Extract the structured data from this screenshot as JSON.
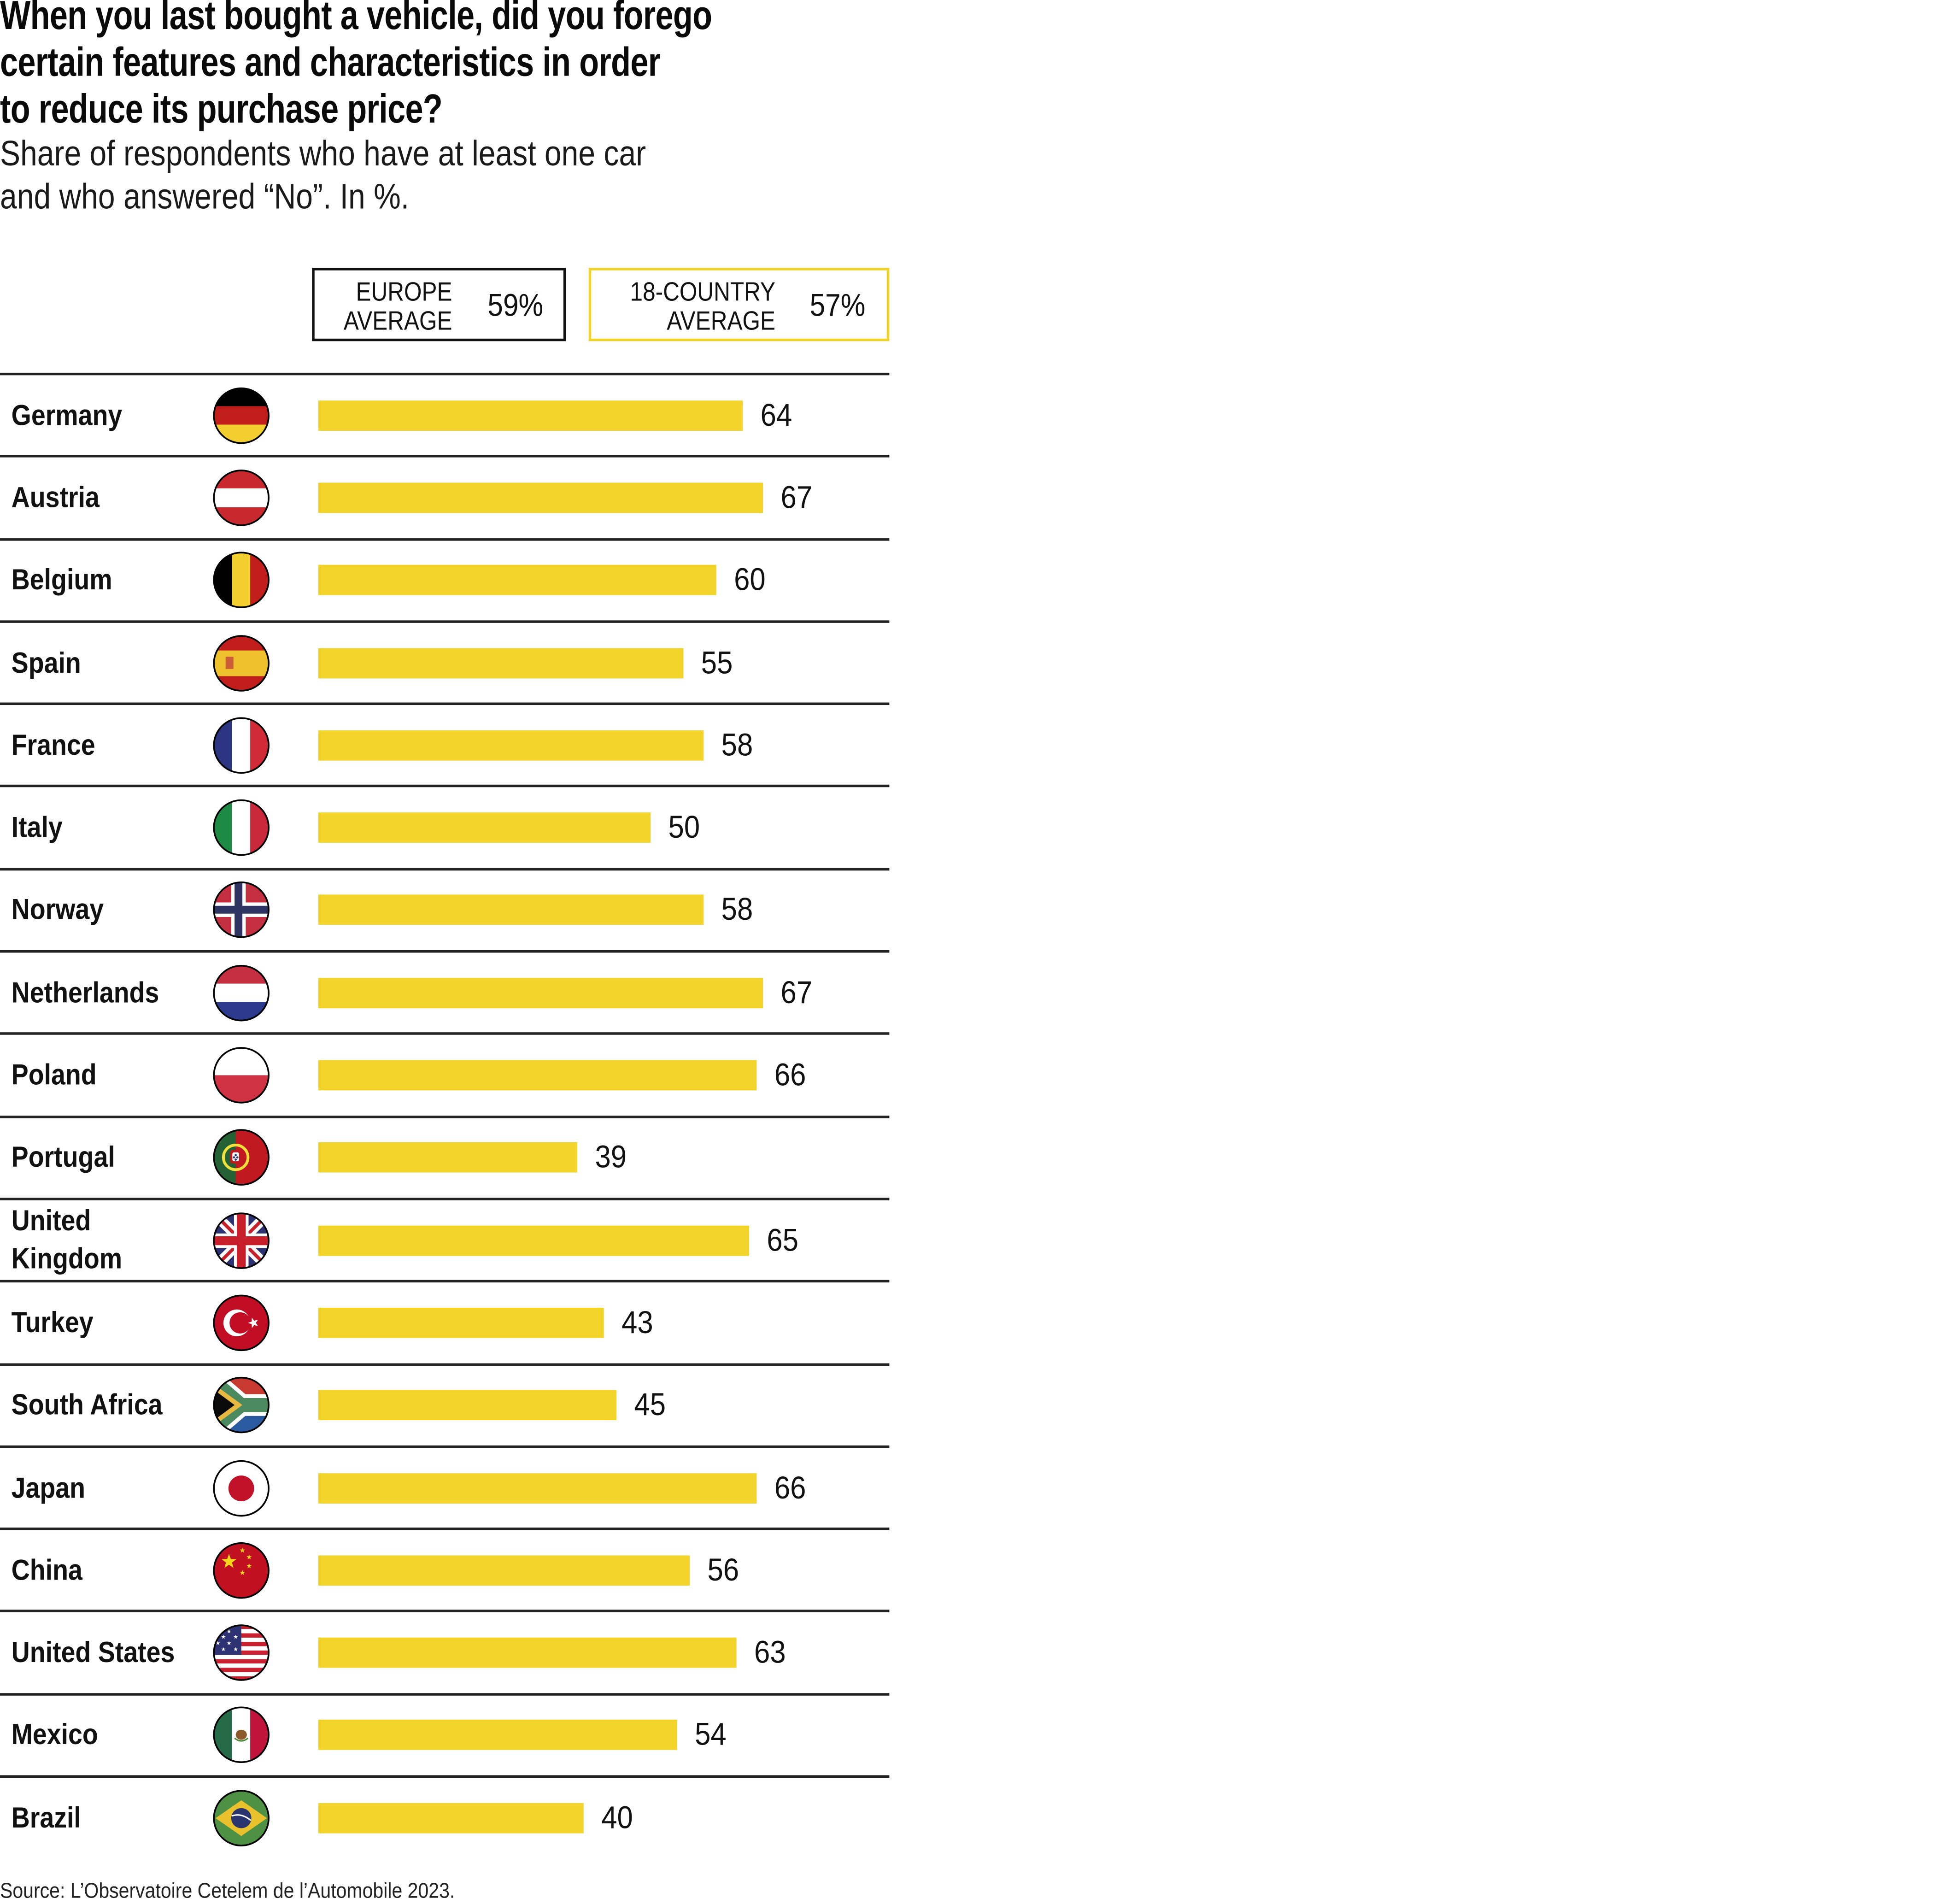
{
  "chart_data": {
    "type": "bar",
    "orientation": "horizontal",
    "title_lines": [
      "When you last bought a vehicle, did you forego",
      "certain features and characteristics in order",
      "to reduce its purchase price?"
    ],
    "subtitle_lines": [
      "Share of respondents who have at least one car",
      "and who answered “No”. In %."
    ],
    "legend": {
      "europe": {
        "label_lines": [
          "EUROPE",
          "AVERAGE"
        ],
        "value": "59%",
        "border_color": "#111111"
      },
      "country18": {
        "label_lines": [
          "18-COUNTRY",
          "AVERAGE"
        ],
        "value": "57%",
        "border_color": "#F2D32A"
      }
    },
    "bar_color": "#F2D42B",
    "xlim": [
      0,
      100
    ],
    "categories": [
      "Germany",
      "Austria",
      "Belgium",
      "Spain",
      "France",
      "Italy",
      "Norway",
      "Netherlands",
      "Poland",
      "Portugal",
      "United Kingdom",
      "Turkey",
      "South Africa",
      "Japan",
      "China",
      "United States",
      "Mexico",
      "Brazil"
    ],
    "label_lines": {
      "United Kingdom": [
        "United",
        "Kingdom"
      ]
    },
    "values": [
      64,
      67,
      60,
      55,
      58,
      50,
      58,
      67,
      66,
      39,
      65,
      43,
      45,
      66,
      56,
      63,
      54,
      40
    ],
    "flags": [
      "germany-flag",
      "austria-flag",
      "belgium-flag",
      "spain-flag",
      "france-flag",
      "italy-flag",
      "norway-flag",
      "netherlands-flag",
      "poland-flag",
      "portugal-flag",
      "united-kingdom-flag",
      "turkey-flag",
      "south-africa-flag",
      "japan-flag",
      "china-flag",
      "united-states-flag",
      "mexico-flag",
      "brazil-flag"
    ],
    "source": "Source: L’Observatoire Cetelem de l’Automobile 2023."
  }
}
